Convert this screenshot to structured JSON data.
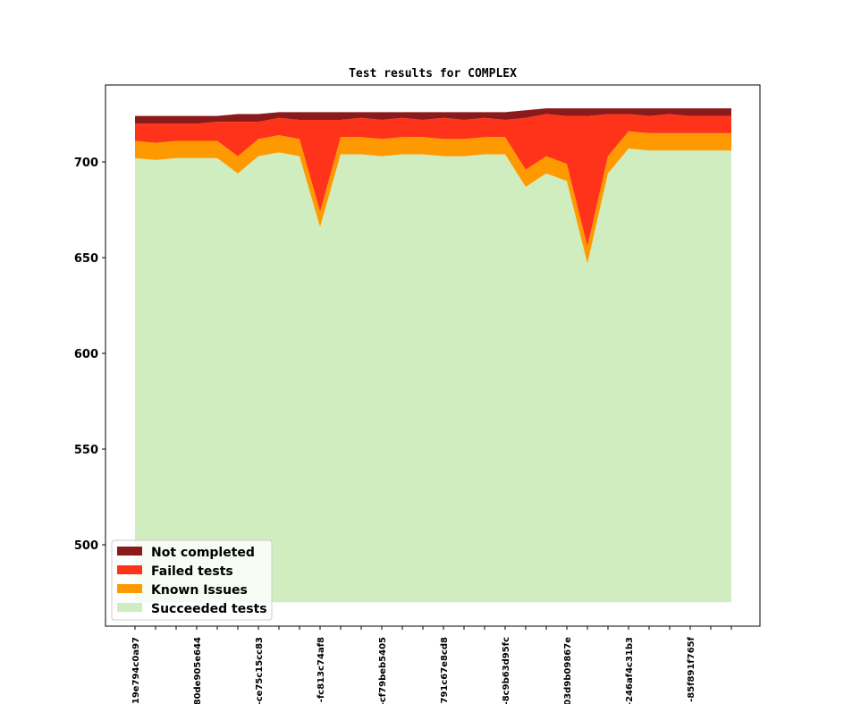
{
  "chart_data": {
    "type": "area",
    "stacked": true,
    "title": "Test results for COMPLEX",
    "xlabel": "",
    "ylabel": "",
    "ylim": [
      457.5,
      740.2
    ],
    "baseline": 470,
    "yticks": [
      500,
      550,
      600,
      650,
      700
    ],
    "point_count": 30,
    "xtick_labels": [
      {
        "index": 0,
        "label": "19e794c0a97"
      },
      {
        "index": 3,
        "label": "80de905e644"
      },
      {
        "index": 6,
        "label": "-ce75c15cc83"
      },
      {
        "index": 9,
        "label": "-fc813c74af8"
      },
      {
        "index": 12,
        "label": "-cf79beb5405"
      },
      {
        "index": 15,
        "label": "-791c67e8cd8"
      },
      {
        "index": 18,
        "label": "-8c9b63d95fc"
      },
      {
        "index": 21,
        "label": "03d9b09867e"
      },
      {
        "index": 24,
        "label": "-246af4c31b3"
      },
      {
        "index": 27,
        "label": "-85f891f765f"
      }
    ],
    "legend_position": "lower-left",
    "series": [
      {
        "name": "Succeeded tests",
        "color": "#d0edc0",
        "cumulative_top": [
          702,
          701,
          702,
          702,
          702,
          694,
          703,
          705,
          703,
          666,
          704,
          704,
          703,
          704,
          704,
          703,
          703,
          704,
          704,
          687,
          694,
          690,
          647,
          694,
          707,
          706,
          706,
          706,
          706,
          706
        ]
      },
      {
        "name": "Known Issues",
        "color": "#ff9900",
        "cumulative_top": [
          711,
          710,
          711,
          711,
          711,
          703,
          712,
          714,
          712,
          674,
          713,
          713,
          712,
          713,
          713,
          712,
          712,
          713,
          713,
          696,
          703,
          699,
          656,
          703,
          716,
          715,
          715,
          715,
          715,
          715
        ]
      },
      {
        "name": "Failed tests",
        "color": "#ff331a",
        "cumulative_top": [
          720,
          720,
          720,
          720,
          721,
          721,
          721,
          723,
          722,
          722,
          722,
          723,
          722,
          723,
          722,
          723,
          722,
          723,
          722,
          723,
          725,
          724,
          724,
          725,
          725,
          724,
          725,
          724,
          724,
          724
        ]
      },
      {
        "name": "Not completed",
        "color": "#8b1a1a",
        "cumulative_top": [
          724,
          724,
          724,
          724,
          724,
          725,
          725,
          726,
          726,
          726,
          726,
          726,
          726,
          726,
          726,
          726,
          726,
          726,
          726,
          727,
          728,
          728,
          728,
          728,
          728,
          728,
          728,
          728,
          728,
          728
        ]
      }
    ]
  }
}
